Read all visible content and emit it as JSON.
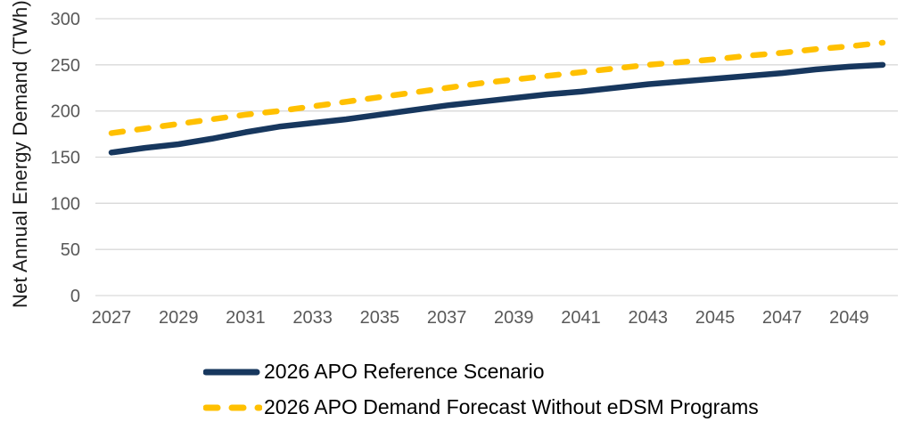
{
  "chart_data": {
    "type": "line",
    "title": "",
    "xlabel": "",
    "ylabel": "Net Annual Energy Demand (TWh)",
    "ylim": [
      0,
      300
    ],
    "yticks": [
      0,
      50,
      100,
      150,
      200,
      250,
      300
    ],
    "xtick_labels": [
      2027,
      2029,
      2031,
      2033,
      2035,
      2037,
      2039,
      2041,
      2043,
      2045,
      2047,
      2049
    ],
    "x": [
      2027,
      2028,
      2029,
      2030,
      2031,
      2032,
      2033,
      2034,
      2035,
      2036,
      2037,
      2038,
      2039,
      2040,
      2041,
      2042,
      2043,
      2044,
      2045,
      2046,
      2047,
      2048,
      2049,
      2050
    ],
    "series": [
      {
        "name": "2026 APO Reference Scenario",
        "color": "#17375E",
        "line_style": "solid",
        "values": [
          155,
          160,
          164,
          170,
          177,
          183,
          187,
          191,
          196,
          201,
          206,
          210,
          214,
          218,
          221,
          225,
          229,
          232,
          235,
          238,
          241,
          245,
          248,
          250
        ]
      },
      {
        "name": "2026 APO Demand Forecast Without eDSM Programs",
        "color": "#FFC000",
        "line_style": "dashed",
        "values": [
          176,
          181,
          186,
          191,
          196,
          200,
          205,
          210,
          215,
          220,
          225,
          230,
          234,
          238,
          242,
          246,
          250,
          253,
          256,
          260,
          263,
          267,
          270,
          274
        ]
      }
    ],
    "grid": "horizontal",
    "legend_position": "bottom-left",
    "styles": {
      "background": "#FFFFFF",
      "grid_color": "#D9D9D9",
      "tick_color": "#595959",
      "axis_title_color": "#1A1A1A",
      "legend_text_color": "#000000"
    }
  }
}
